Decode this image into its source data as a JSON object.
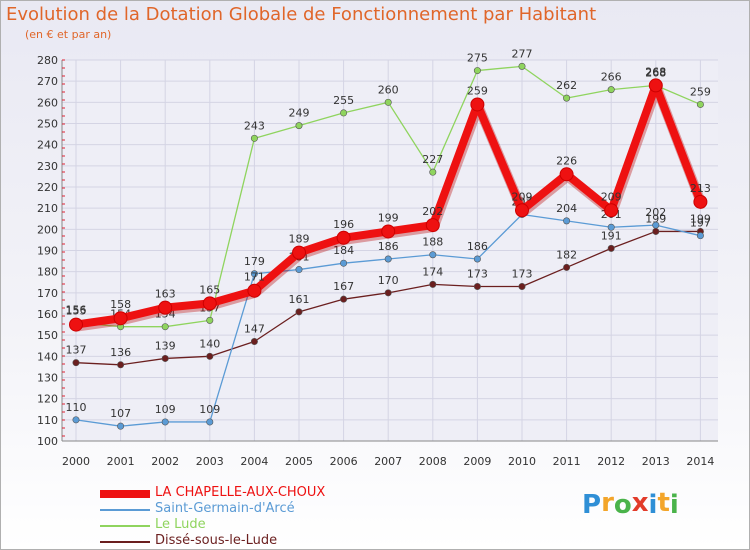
{
  "header": {
    "title": "Evolution de la Dotation Globale de Fonctionnement par Habitant",
    "subtitle": "(en € et par an)"
  },
  "logo": {
    "text": "Proxiti",
    "letters": [
      {
        "ch": "P",
        "color": "#2f8fd6"
      },
      {
        "ch": "r",
        "color": "#f3a52a"
      },
      {
        "ch": "o",
        "color": "#4ab34a"
      },
      {
        "ch": "x",
        "color": "#e23b2a"
      },
      {
        "ch": "i",
        "color": "#2f8fd6"
      },
      {
        "ch": "t",
        "color": "#f3a52a"
      },
      {
        "ch": "i",
        "color": "#4ab34a"
      }
    ]
  },
  "chart_data": {
    "type": "line",
    "title": "Evolution de la Dotation Globale de Fonctionnement par Habitant",
    "subtitle": "(en € et par an)",
    "xlabel": "",
    "ylabel": "",
    "ylim": [
      100,
      280
    ],
    "yticks": [
      100,
      110,
      120,
      130,
      140,
      150,
      160,
      170,
      180,
      190,
      200,
      210,
      220,
      230,
      240,
      250,
      260,
      270,
      280
    ],
    "categories": [
      "2000",
      "2001",
      "2002",
      "2003",
      "2004",
      "2005",
      "2006",
      "2007",
      "2008",
      "2009",
      "2010",
      "2011",
      "2012",
      "2013",
      "2014"
    ],
    "grid": true,
    "legend_position": "bottom-left",
    "series": [
      {
        "name": "Dissé-sous-le-Lude",
        "color": "#6b1f1f",
        "values": [
          137,
          136,
          139,
          140,
          147,
          161,
          167,
          170,
          174,
          173,
          173,
          182,
          191,
          199,
          199
        ],
        "labels": [
          "137",
          "136",
          "139",
          "140",
          "147",
          "161",
          "167",
          "170",
          "174",
          "173",
          "173",
          "182",
          "191",
          "199",
          "199"
        ]
      },
      {
        "name": "Le Lude",
        "color": "#8fd45e",
        "values": [
          156,
          154,
          154,
          157,
          243,
          249,
          255,
          260,
          227,
          275,
          277,
          262,
          266,
          268,
          259
        ],
        "labels": [
          "156",
          "154",
          "154",
          "157",
          "243",
          "249",
          "255",
          "260",
          "227",
          "275",
          "277",
          "262",
          "266",
          "268",
          "259"
        ]
      },
      {
        "name": "Saint-Germain-d'Arcé",
        "color": "#5b9bd5",
        "values": [
          110,
          107,
          109,
          109,
          179,
          181,
          184,
          186,
          188,
          186,
          207,
          204,
          201,
          202,
          197
        ],
        "labels": [
          "110",
          "107",
          "109",
          "109",
          "179",
          "181",
          "184",
          "186",
          "188",
          "186",
          "207",
          "204",
          "201",
          "202",
          "197"
        ]
      },
      {
        "name": "LA CHAPELLE-AUX-CHOUX",
        "color": "#ee1111",
        "values": [
          155,
          158,
          163,
          165,
          171,
          189,
          196,
          199,
          202,
          259,
          209,
          226,
          209,
          268,
          213
        ],
        "labels": [
          "155",
          "158",
          "163",
          "165",
          "171",
          "189",
          "196",
          "199",
          "202",
          "259",
          "209",
          "226",
          "209",
          "268",
          "213"
        ]
      }
    ],
    "legend": [
      {
        "name": "LA CHAPELLE-AUX-CHOUX",
        "color": "#ee1111"
      },
      {
        "name": "Saint-Germain-d'Arcé",
        "color": "#5b9bd5"
      },
      {
        "name": "Le Lude",
        "color": "#8fd45e"
      },
      {
        "name": "Dissé-sous-le-Lude",
        "color": "#6b1f1f"
      }
    ]
  }
}
